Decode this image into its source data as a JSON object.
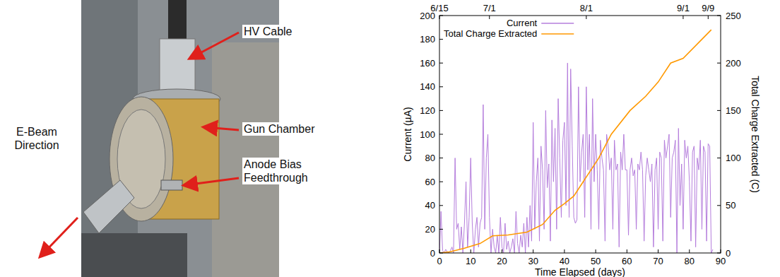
{
  "photo": {
    "labels": [
      {
        "lines": [
          "HV Cable"
        ]
      },
      {
        "lines": [
          "Gun Chamber"
        ]
      },
      {
        "lines": [
          "Anode Bias",
          "Feedthrough"
        ]
      },
      {
        "lines": [
          "E-Beam",
          "Direction"
        ]
      }
    ]
  },
  "chart_data": {
    "type": "line",
    "x_label": "Time Elapsed (days)",
    "y_label": "Current (µA)",
    "y2_label": "Total Charge Extracted (C)",
    "xlim": [
      0,
      90
    ],
    "xticks": [
      0,
      10,
      20,
      30,
      40,
      50,
      60,
      70,
      80,
      90
    ],
    "x2ticks": [
      {
        "value": 0,
        "label": "6/15"
      },
      {
        "value": 16,
        "label": "7/1"
      },
      {
        "value": 47,
        "label": "8/1"
      },
      {
        "value": 78,
        "label": "9/1"
      },
      {
        "value": 86,
        "label": "9/9"
      }
    ],
    "ylim": [
      0,
      200
    ],
    "yticks": [
      0,
      20,
      40,
      60,
      80,
      100,
      120,
      140,
      160,
      180,
      200
    ],
    "y2lim": [
      0,
      250
    ],
    "y2ticks": [
      0,
      50,
      100,
      150,
      200,
      250
    ],
    "grid": false,
    "legend": "upper left",
    "series": [
      {
        "name": "Current",
        "color": "#b57edc",
        "axis": "y",
        "x": [
          0,
          0.5,
          1,
          1.5,
          2,
          2.5,
          3,
          3.5,
          4,
          4.5,
          5,
          5.5,
          6,
          6.5,
          7,
          7.5,
          8,
          8.5,
          9,
          9.5,
          10,
          10.5,
          11,
          11.5,
          12,
          12.5,
          13,
          13.5,
          14,
          14.5,
          15,
          15.5,
          16,
          16.5,
          17,
          17.5,
          18,
          18.5,
          19,
          19.5,
          20,
          20.5,
          21,
          21.5,
          22,
          22.5,
          23,
          23.5,
          24,
          24.5,
          25,
          25.5,
          26,
          26.5,
          27,
          27.5,
          28,
          28.5,
          29,
          29.5,
          30,
          30.5,
          31,
          31.5,
          32,
          32.5,
          33,
          33.5,
          34,
          34.5,
          35,
          35.5,
          36,
          36.5,
          37,
          37.5,
          38,
          38.5,
          39,
          39.5,
          40,
          40.5,
          41,
          41.5,
          42,
          42.5,
          43,
          43.5,
          44,
          44.5,
          45,
          45.5,
          46,
          46.5,
          47,
          47.5,
          48,
          48.5,
          49,
          49.5,
          50,
          50.5,
          51,
          51.5,
          52,
          52.5,
          53,
          53.5,
          54,
          54.5,
          55,
          55.5,
          56,
          56.5,
          57,
          57.5,
          58,
          58.5,
          59,
          59.5,
          60,
          60.5,
          61,
          61.5,
          62,
          62.5,
          63,
          63.5,
          64,
          64.5,
          65,
          65.5,
          66,
          66.5,
          67,
          67.5,
          68,
          68.5,
          69,
          69.5,
          70,
          70.5,
          71,
          71.5,
          72,
          72.5,
          73,
          73.5,
          74,
          74.5,
          75,
          75.5,
          76,
          76.5,
          77,
          77.5,
          78,
          78.5,
          79,
          79.5,
          80,
          80.5,
          81,
          81.5,
          82,
          82.5,
          83,
          83.5,
          84,
          84.5,
          85,
          85.5,
          86,
          86.5,
          87,
          87.5
        ],
        "values": [
          0,
          35,
          2,
          0,
          3,
          1,
          0,
          2,
          5,
          0,
          80,
          20,
          25,
          3,
          22,
          0,
          25,
          60,
          5,
          30,
          80,
          25,
          0,
          20,
          30,
          5,
          25,
          30,
          125,
          20,
          80,
          100,
          30,
          0,
          20,
          5,
          0,
          15,
          0,
          30,
          5,
          0,
          25,
          3,
          10,
          0,
          5,
          12,
          0,
          35,
          8,
          0,
          15,
          5,
          25,
          0,
          30,
          5,
          40,
          10,
          110,
          20,
          60,
          80,
          10,
          90,
          70,
          20,
          120,
          55,
          75,
          10,
          112,
          60,
          105,
          20,
          130,
          80,
          30,
          95,
          110,
          40,
          160,
          30,
          155,
          90,
          30,
          25,
          28,
          140,
          60,
          85,
          100,
          30,
          140,
          70,
          100,
          20,
          130,
          60,
          100,
          70,
          20,
          95,
          80,
          70,
          10,
          100,
          90,
          70,
          80,
          20,
          95,
          70,
          75,
          5,
          85,
          70,
          100,
          70,
          70,
          15,
          70,
          80,
          65,
          70,
          20,
          75,
          70,
          85,
          70,
          10,
          65,
          80,
          70,
          60,
          75,
          5,
          70,
          80,
          20,
          85,
          80,
          10,
          95,
          80,
          90,
          100,
          30,
          80,
          85,
          95,
          0,
          105,
          40,
          75,
          20,
          95,
          80,
          90,
          60,
          10,
          85,
          90,
          5,
          80,
          70,
          95,
          20,
          90,
          85,
          10,
          92,
          90,
          0,
          3
        ]
      },
      {
        "name": "Total Charge Extracted",
        "color": "#ff9900",
        "axis": "y2",
        "x": [
          0,
          3,
          8,
          13,
          17,
          22,
          28,
          33,
          37,
          40,
          43,
          46,
          51,
          55,
          61,
          66,
          70,
          74,
          78,
          84,
          87
        ],
        "values": [
          0,
          1,
          5,
          10,
          18,
          19,
          22,
          30,
          45,
          52,
          60,
          75,
          100,
          125,
          150,
          165,
          180,
          200,
          205,
          225,
          235
        ]
      }
    ]
  }
}
